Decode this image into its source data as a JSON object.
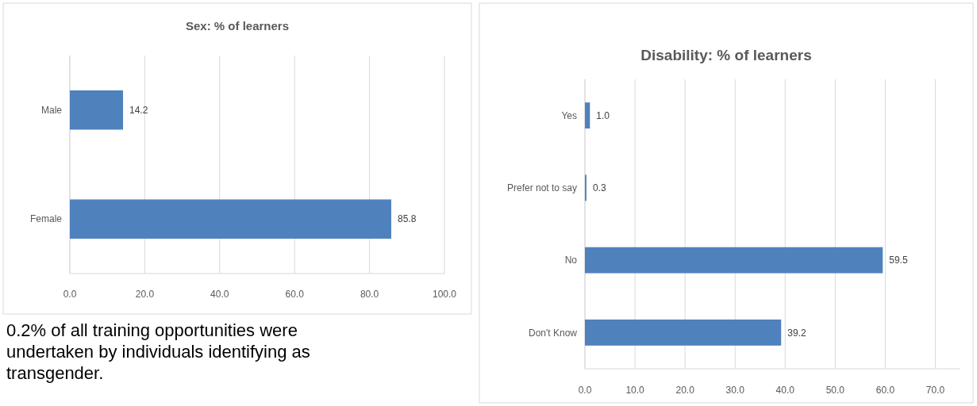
{
  "chart_data": [
    {
      "type": "bar",
      "orientation": "horizontal",
      "title": "Sex: % of learners",
      "categories": [
        "Male",
        "Female"
      ],
      "values": [
        14.2,
        85.8
      ],
      "value_labels": [
        "14.2",
        "85.8"
      ],
      "color": "#4f81bd",
      "xlim": [
        0,
        100
      ],
      "xticks": [
        {
          "value": 0,
          "label": "0.0"
        },
        {
          "value": 20,
          "label": "20.0"
        },
        {
          "value": 40,
          "label": "40.0"
        },
        {
          "value": 60,
          "label": "60.0"
        },
        {
          "value": 80,
          "label": "80.0"
        },
        {
          "value": 100,
          "label": "100.0"
        }
      ],
      "grid": "x",
      "annotations": [
        "0.2% of all training opportunities were undertaken by individuals identifying as transgender."
      ]
    },
    {
      "type": "bar",
      "orientation": "horizontal",
      "title": "Disability: % of learners",
      "categories": [
        "Yes",
        "Prefer not to say",
        "No",
        "Don't Know"
      ],
      "values": [
        1.0,
        0.3,
        59.5,
        39.2
      ],
      "value_labels": [
        "1.0",
        "0.3",
        "59.5",
        "39.2"
      ],
      "color": "#4f81bd",
      "xlim": [
        0,
        75
      ],
      "xticks": [
        {
          "value": 0,
          "label": "0.0"
        },
        {
          "value": 10,
          "label": "10.0"
        },
        {
          "value": 20,
          "label": "20.0"
        },
        {
          "value": 30,
          "label": "30.0"
        },
        {
          "value": 40,
          "label": "40.0"
        },
        {
          "value": 50,
          "label": "50.0"
        },
        {
          "value": 60,
          "label": "60.0"
        },
        {
          "value": 70,
          "label": "70.0"
        }
      ],
      "grid": "x"
    }
  ]
}
